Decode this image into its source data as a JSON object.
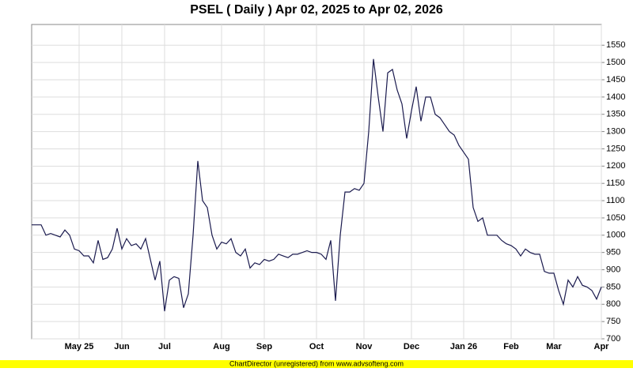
{
  "chart_data": {
    "type": "line",
    "title": "PSEL ( Daily ) Apr 02, 2025 to Apr 02, 2026",
    "footer": "ChartDirector (unregistered) from www.advsofteng.com",
    "categories": [
      null,
      null,
      null,
      null,
      null,
      null,
      null,
      null,
      null,
      null,
      "May 25",
      null,
      null,
      null,
      null,
      null,
      null,
      null,
      null,
      "Jun",
      null,
      null,
      null,
      null,
      null,
      null,
      null,
      null,
      "Jul",
      null,
      null,
      null,
      null,
      null,
      null,
      null,
      null,
      null,
      null,
      null,
      "Aug",
      null,
      null,
      null,
      null,
      null,
      null,
      null,
      null,
      "Sep",
      null,
      null,
      null,
      null,
      null,
      null,
      null,
      null,
      null,
      null,
      "Oct",
      null,
      null,
      null,
      null,
      null,
      null,
      null,
      null,
      null,
      "Nov",
      null,
      null,
      null,
      null,
      null,
      null,
      null,
      null,
      null,
      "Dec",
      null,
      null,
      null,
      null,
      null,
      null,
      null,
      null,
      null,
      null,
      "Jan 26",
      null,
      null,
      null,
      null,
      null,
      null,
      null,
      null,
      null,
      "Feb",
      null,
      null,
      null,
      null,
      null,
      null,
      null,
      null,
      "Mar",
      null,
      null,
      null,
      null,
      null,
      null,
      null,
      null,
      null,
      "Apr"
    ],
    "series": [
      {
        "name": "PSEL",
        "color": "#1a1a4e",
        "values": [
          1030,
          1030,
          1030,
          1000,
          1005,
          1000,
          995,
          1015,
          1000,
          960,
          955,
          940,
          940,
          920,
          985,
          930,
          935,
          960,
          1020,
          960,
          990,
          970,
          975,
          960,
          990,
          930,
          870,
          925,
          780,
          870,
          880,
          875,
          790,
          830,
          1000,
          1215,
          1100,
          1080,
          1000,
          960,
          980,
          975,
          990,
          950,
          940,
          960,
          905,
          920,
          915,
          930,
          925,
          930,
          945,
          940,
          935,
          945,
          945,
          950,
          955,
          950,
          950,
          945,
          930,
          985,
          810,
          1000,
          1125,
          1125,
          1135,
          1130,
          1150,
          1300,
          1510,
          1400,
          1300,
          1470,
          1480,
          1420,
          1380,
          1280,
          1360,
          1430,
          1330,
          1400,
          1400,
          1350,
          1340,
          1320,
          1300,
          1290,
          1260,
          1240,
          1220,
          1080,
          1040,
          1050,
          1000,
          1000,
          1000,
          985,
          975,
          970,
          960,
          940,
          960,
          950,
          945,
          945,
          895,
          890,
          890,
          840,
          800,
          870,
          850,
          880,
          855,
          850,
          840,
          815,
          850
        ]
      }
    ],
    "ylim": [
      700,
      1610
    ],
    "yticks": [
      700,
      750,
      800,
      850,
      900,
      950,
      1000,
      1050,
      1100,
      1150,
      1200,
      1250,
      1300,
      1350,
      1400,
      1450,
      1500,
      1550
    ],
    "grid": true
  }
}
